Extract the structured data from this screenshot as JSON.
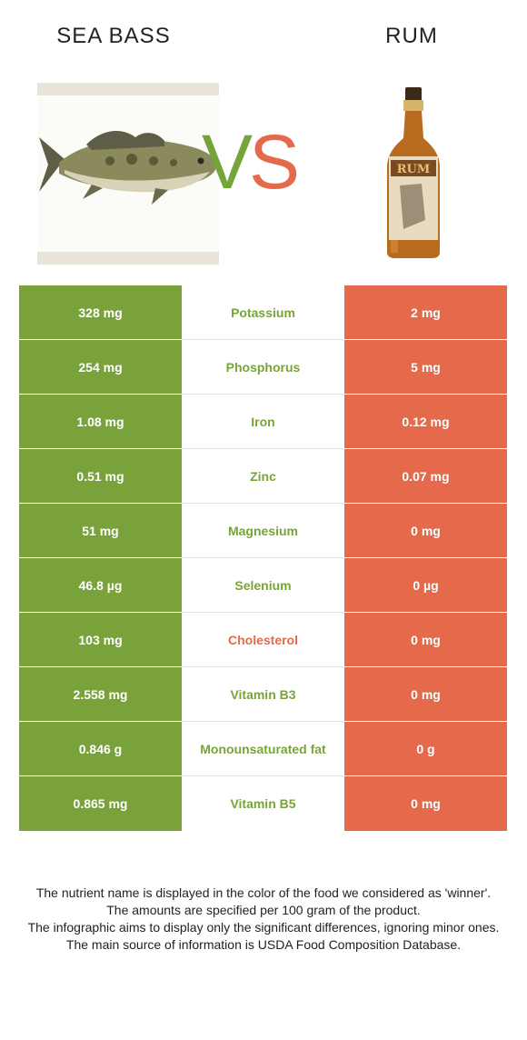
{
  "header": {
    "left_title": "SEA BASS",
    "right_title": "RUM",
    "vs_v": "V",
    "vs_s": "S"
  },
  "colors": {
    "winner_left": "#79a33a",
    "winner_right": "#e56a4b"
  },
  "rows": [
    {
      "left": "328 mg",
      "nutrient": "Potassium",
      "right": "2 mg",
      "winner": "left"
    },
    {
      "left": "254 mg",
      "nutrient": "Phosphorus",
      "right": "5 mg",
      "winner": "left"
    },
    {
      "left": "1.08 mg",
      "nutrient": "Iron",
      "right": "0.12 mg",
      "winner": "left"
    },
    {
      "left": "0.51 mg",
      "nutrient": "Zinc",
      "right": "0.07 mg",
      "winner": "left"
    },
    {
      "left": "51 mg",
      "nutrient": "Magnesium",
      "right": "0 mg",
      "winner": "left"
    },
    {
      "left": "46.8 µg",
      "nutrient": "Selenium",
      "right": "0 µg",
      "winner": "left"
    },
    {
      "left": "103 mg",
      "nutrient": "Cholesterol",
      "right": "0 mg",
      "winner": "right"
    },
    {
      "left": "2.558 mg",
      "nutrient": "Vitamin B3",
      "right": "0 mg",
      "winner": "left"
    },
    {
      "left": "0.846 g",
      "nutrient": "Monounsaturated fat",
      "right": "0 g",
      "winner": "left"
    },
    {
      "left": "0.865 mg",
      "nutrient": "Vitamin B5",
      "right": "0 mg",
      "winner": "left"
    }
  ],
  "footnote": {
    "line1": "The nutrient name is displayed in the color of the food we considered as 'winner'.",
    "line2": "The amounts are specified per 100 gram of the product.",
    "line3": "The infographic aims to display only the significant differences, ignoring minor ones.",
    "line4": "The main source of information is USDA Food Composition Database."
  }
}
